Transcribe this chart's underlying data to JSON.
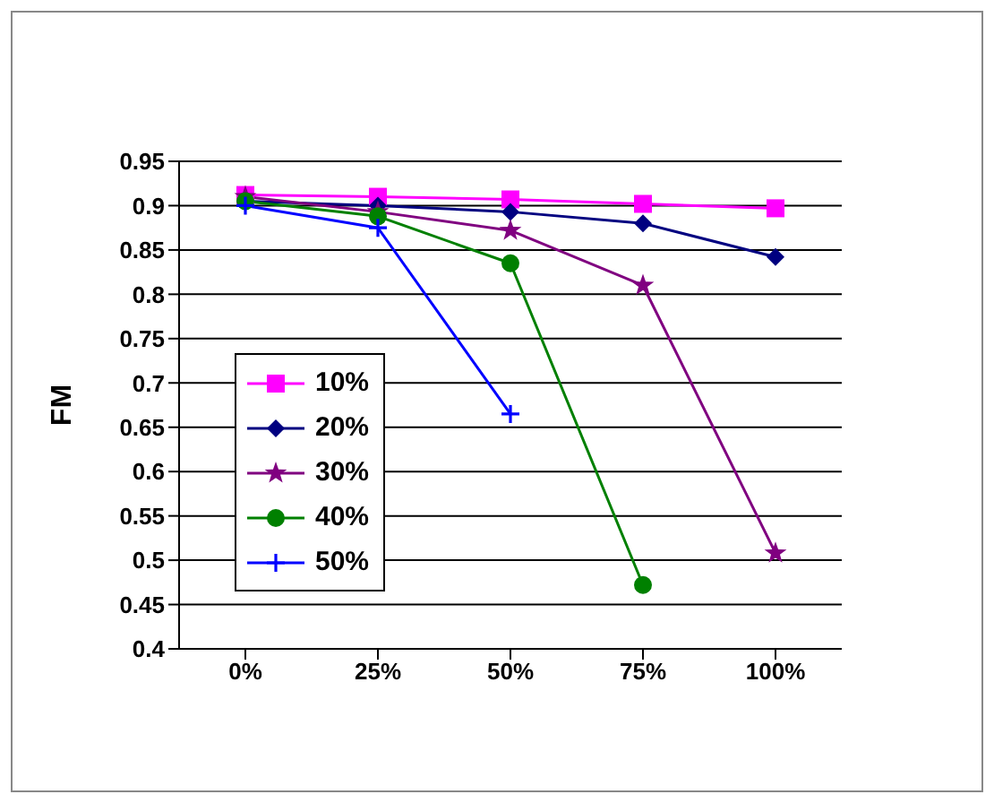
{
  "chart_data": {
    "type": "line",
    "ylabel": "FM",
    "categories": [
      "0%",
      "25%",
      "50%",
      "75%",
      "100%"
    ],
    "series": [
      {
        "name": "10%",
        "color": "#ff00ff",
        "marker": "square",
        "values": [
          0.912,
          0.91,
          0.907,
          0.902,
          0.897
        ]
      },
      {
        "name": "20%",
        "color": "#000080",
        "marker": "diamond",
        "values": [
          0.905,
          0.9,
          0.893,
          0.88,
          0.842
        ]
      },
      {
        "name": "30%",
        "color": "#800080",
        "marker": "star",
        "values": [
          0.91,
          0.893,
          0.872,
          0.81,
          0.508
        ]
      },
      {
        "name": "40%",
        "color": "#008000",
        "marker": "circle",
        "values": [
          0.905,
          0.888,
          0.835,
          0.472,
          null
        ]
      },
      {
        "name": "50%",
        "color": "#0000ff",
        "marker": "cross",
        "values": [
          0.9,
          0.875,
          0.665,
          null,
          null
        ]
      }
    ],
    "ylim": [
      0.4,
      0.95
    ],
    "yticks": [
      0.4,
      0.45,
      0.5,
      0.55,
      0.6,
      0.65,
      0.7,
      0.75,
      0.8,
      0.85,
      0.9,
      0.95
    ],
    "grid": "y",
    "legend": "left",
    "line_style": "solid"
  }
}
